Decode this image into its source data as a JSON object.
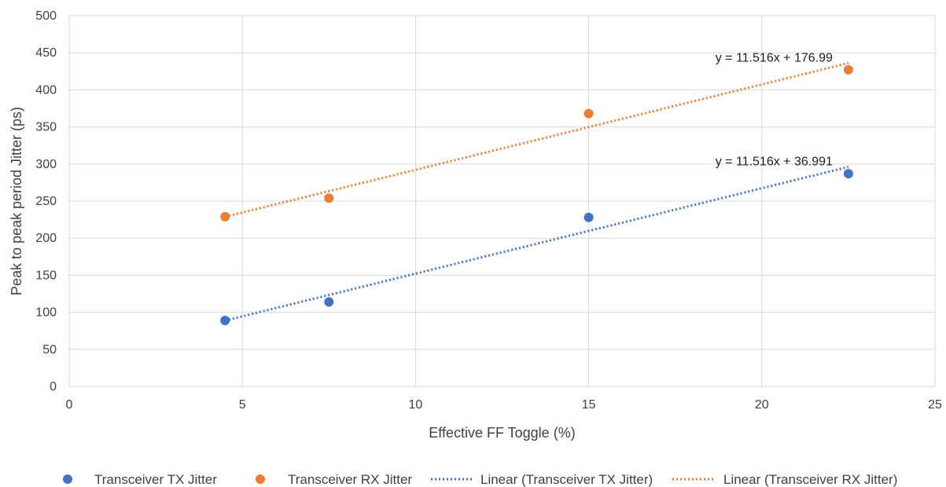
{
  "chart_data": {
    "type": "scatter",
    "xlabel": "Effective FF Toggle (%)",
    "ylabel": "Peak to peak period Jitter (ps)",
    "xlim": [
      0,
      25
    ],
    "ylim": [
      0,
      500
    ],
    "xticks": [
      0,
      5,
      10,
      15,
      20,
      25
    ],
    "yticks": [
      0,
      50,
      100,
      150,
      200,
      250,
      300,
      350,
      400,
      450,
      500
    ],
    "grid": true,
    "legend_position": "bottom",
    "series": [
      {
        "name": "Transceiver TX Jitter",
        "color": "#4472C4",
        "x": [
          4.5,
          7.5,
          15,
          22.5
        ],
        "y": [
          89,
          114,
          228,
          287
        ],
        "trendline": {
          "name": "Linear (Transceiver TX Jitter)",
          "slope": 11.516,
          "intercept": 36.991,
          "equation": "y = 11.516x + 36.991"
        }
      },
      {
        "name": "Transceiver RX Jitter",
        "color": "#ED7D31",
        "x": [
          4.5,
          7.5,
          15,
          22.5
        ],
        "y": [
          229,
          254,
          368,
          427
        ],
        "trendline": {
          "name": "Linear (Transceiver RX Jitter)",
          "slope": 11.516,
          "intercept": 176.99,
          "equation": "y = 11.516x + 176.99"
        }
      }
    ]
  }
}
